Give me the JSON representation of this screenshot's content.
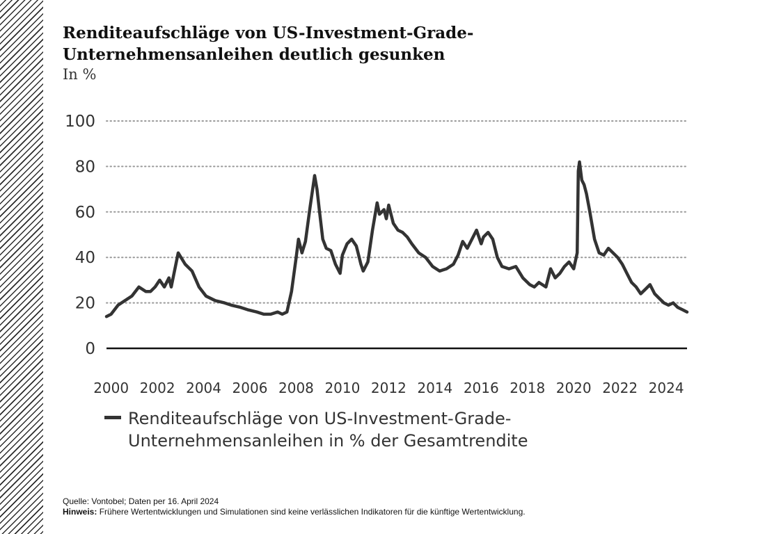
{
  "page": {
    "title": "Renditeaufschläge von US-Investment-Grade-Unternehmensanleihen deutlich gesunken",
    "subtitle": "In %",
    "source": "Quelle: Vontobel; Daten per 16. April 2024",
    "note_label": "Hinweis:",
    "note_text": "Frühere Wertentwicklungen und Simulationen sind keine verlässlichen Indikatoren für die künftige Wertentwicklung."
  },
  "colors": {
    "line": "#333333",
    "grid": "#999999",
    "hatch": "#2b2b2b"
  },
  "chart_data": {
    "type": "line",
    "title": "Renditeaufschläge von US-Investment-Grade-Unternehmensanleihen deutlich gesunken",
    "ylabel": "In %",
    "xlabel": "",
    "xlim": [
      1999.8,
      2024.9
    ],
    "ylim": [
      0,
      100
    ],
    "y_ticks": [
      0,
      20,
      40,
      60,
      80,
      100
    ],
    "x_ticks": [
      2000,
      2002,
      2004,
      2006,
      2008,
      2010,
      2012,
      2014,
      2016,
      2018,
      2020,
      2022,
      2024
    ],
    "grid": true,
    "legend": "bottom-left",
    "series": [
      {
        "name": "Renditeaufschläge von US-Investment-Grade-Unternehmensanleihen in % der Gesamtrendite",
        "x": [
          1999.8,
          2000.0,
          2000.3,
          2000.6,
          2000.9,
          2001.2,
          2001.5,
          2001.7,
          2001.9,
          2002.1,
          2002.3,
          2002.4,
          2002.5,
          2002.6,
          2002.9,
          2003.2,
          2003.5,
          2003.8,
          2004.1,
          2004.5,
          2004.9,
          2005.2,
          2005.6,
          2005.9,
          2006.3,
          2006.6,
          2006.9,
          2007.2,
          2007.4,
          2007.6,
          2007.8,
          2008.0,
          2008.1,
          2008.25,
          2008.4,
          2008.6,
          2008.8,
          2008.9,
          2009.0,
          2009.15,
          2009.3,
          2009.5,
          2009.7,
          2009.9,
          2010.0,
          2010.2,
          2010.4,
          2010.6,
          2010.8,
          2010.9,
          2011.1,
          2011.3,
          2011.5,
          2011.6,
          2011.8,
          2011.9,
          2012.0,
          2012.2,
          2012.4,
          2012.6,
          2012.8,
          2013.0,
          2013.3,
          2013.6,
          2013.9,
          2014.2,
          2014.5,
          2014.8,
          2015.0,
          2015.2,
          2015.4,
          2015.6,
          2015.8,
          2016.0,
          2016.1,
          2016.3,
          2016.5,
          2016.7,
          2016.9,
          2017.2,
          2017.5,
          2017.8,
          2018.1,
          2018.3,
          2018.5,
          2018.8,
          2019.0,
          2019.2,
          2019.4,
          2019.6,
          2019.8,
          2020.0,
          2020.15,
          2020.2,
          2020.25,
          2020.35,
          2020.45,
          2020.55,
          2020.7,
          2020.9,
          2021.1,
          2021.3,
          2021.5,
          2021.7,
          2021.9,
          2022.1,
          2022.3,
          2022.5,
          2022.7,
          2022.9,
          2023.1,
          2023.3,
          2023.5,
          2023.7,
          2023.9,
          2024.1,
          2024.3,
          2024.5,
          2024.7,
          2024.9
        ],
        "values": [
          14,
          15,
          19,
          21,
          23,
          27,
          25,
          25,
          27,
          30,
          27,
          29,
          31,
          27,
          42,
          37,
          34,
          27,
          23,
          21,
          20,
          19,
          18,
          17,
          16,
          15,
          15,
          16,
          15,
          16,
          25,
          40,
          48,
          42,
          47,
          62,
          76,
          70,
          61,
          48,
          44,
          43,
          37,
          33,
          41,
          46,
          48,
          45,
          37,
          34,
          38,
          52,
          64,
          59,
          61,
          57,
          63,
          55,
          52,
          51,
          49,
          46,
          42,
          40,
          36,
          34,
          35,
          37,
          41,
          47,
          44,
          48,
          52,
          46,
          49,
          51,
          48,
          40,
          36,
          35,
          36,
          31,
          28,
          27,
          29,
          27,
          35,
          31,
          33,
          36,
          38,
          35,
          42,
          78,
          82,
          74,
          72,
          68,
          60,
          48,
          42,
          41,
          44,
          42,
          40,
          37,
          33,
          29,
          27,
          24,
          26,
          28,
          24,
          22,
          20,
          19,
          20,
          18,
          17,
          16
        ]
      }
    ]
  }
}
